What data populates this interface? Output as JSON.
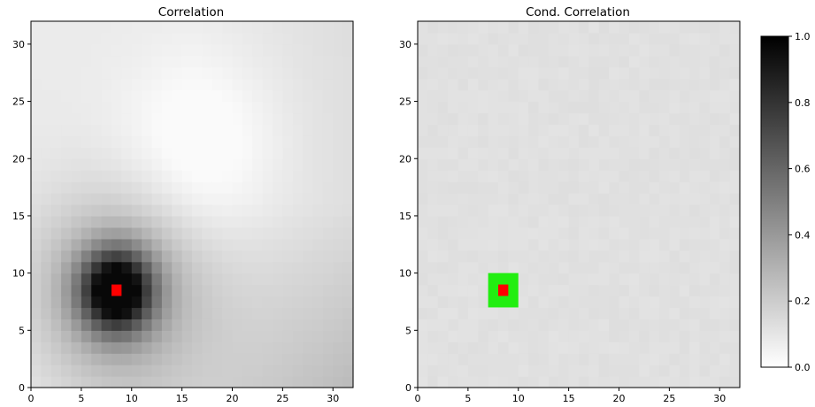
{
  "chart_data": [
    {
      "type": "heatmap",
      "title": "Correlation",
      "xlim": [
        0,
        32
      ],
      "ylim": [
        0,
        32
      ],
      "xticks": [
        0,
        5,
        10,
        15,
        20,
        25,
        30
      ],
      "yticks": [
        0,
        5,
        10,
        15,
        20,
        25,
        30
      ],
      "colormap": "gray_r",
      "value_range": [
        0.0,
        1.0
      ],
      "grid": false,
      "field": {
        "description_values": {
          "peak_location": [
            8.5,
            8.5
          ],
          "peak_value": 0.95,
          "minimum_location": [
            17,
            21
          ],
          "minimum_value": 0.03,
          "bottom_right_value": 0.38,
          "top_left_value": 0.2
        }
      },
      "markers": [
        {
          "shape": "square",
          "color": "#ff0000",
          "x": [
            8,
            9
          ],
          "y": [
            8,
            9
          ]
        }
      ]
    },
    {
      "type": "heatmap",
      "title": "Cond. Correlation",
      "xlim": [
        0,
        32
      ],
      "ylim": [
        0,
        32
      ],
      "xticks": [
        0,
        5,
        10,
        15,
        20,
        25,
        30
      ],
      "yticks": [
        0,
        5,
        10,
        15,
        20,
        25,
        30
      ],
      "colormap": "gray_r",
      "value_range": [
        0.0,
        1.0
      ],
      "grid": false,
      "field": {
        "uniform_value": 0.12
      },
      "markers": [
        {
          "shape": "square",
          "color": "#22ee11",
          "x": [
            7,
            10
          ],
          "y": [
            7,
            10
          ]
        },
        {
          "shape": "square",
          "color": "#ff0000",
          "x": [
            8,
            9
          ],
          "y": [
            8,
            9
          ]
        }
      ]
    }
  ],
  "colorbar": {
    "ticks": [
      "0.0",
      "0.2",
      "0.4",
      "0.6",
      "0.8",
      "1.0"
    ],
    "range": [
      0.0,
      1.0
    ],
    "colormap": "gray_r"
  }
}
